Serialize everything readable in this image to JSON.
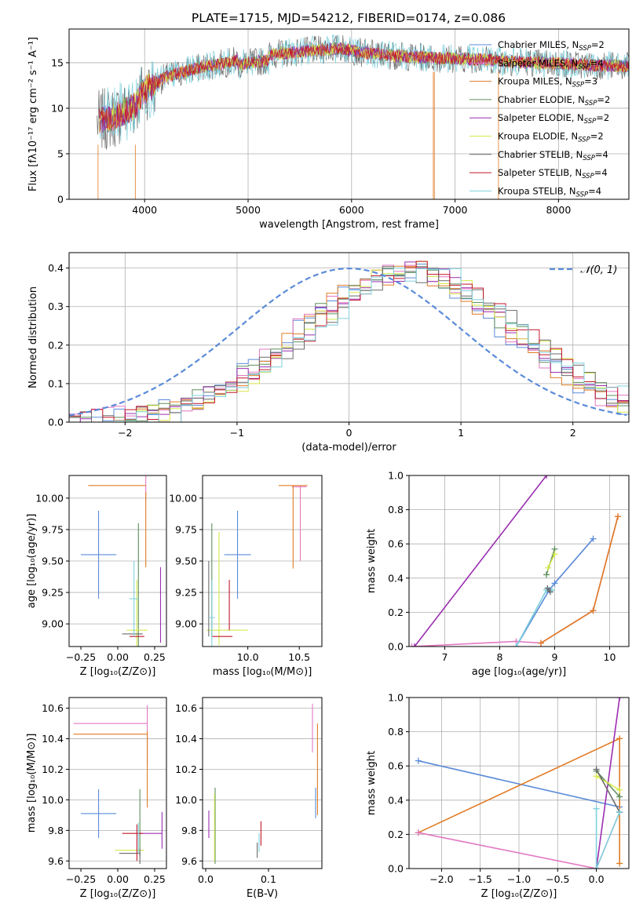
{
  "title": "PLATE=1715, MJD=54212, FIBERID=0174, z=0.086",
  "colors": {
    "Chabrier MILES": "#5b8bd9",
    "Salpeter MILES": "#e377c2",
    "Kroupa MILES": "#e07b24",
    "Chabrier ELODIE": "#5e8f5e",
    "Salpeter ELODIE": "#9a2fb0",
    "Kroupa ELODIE": "#d6e84a",
    "Chabrier STELIB": "#6b6b6b",
    "Salpeter STELIB": "#c4162a",
    "Kroupa STELIB": "#7fd1dd"
  },
  "chart_data": [
    {
      "id": "spectrum",
      "type": "line",
      "xlabel": "wavelength [Angstrom, rest frame]",
      "ylabel": "Flux [fλ10⁻¹⁷ erg cm⁻² s⁻¹ A⁻¹]",
      "xlim": [
        3270,
        8680
      ],
      "ylim": [
        0,
        18.7
      ],
      "xticks": [
        "4000",
        "5000",
        "6000",
        "7000",
        "8000"
      ],
      "yticks": [
        "0",
        "5",
        "10",
        "15"
      ],
      "grid": true,
      "legend_position": "upper-right",
      "legend": [
        {
          "label": "Chabrier MILES, N",
          "sub": "SSP",
          "suffix": "=2",
          "color": "#5b8bd9"
        },
        {
          "label": "Salpeter MILES, N",
          "sub": "SSP",
          "suffix": "=4",
          "color": "#e377c2"
        },
        {
          "label": "Kroupa MILES, N",
          "sub": "SSP",
          "suffix": "=3",
          "color": "#e07b24"
        },
        {
          "label": "Chabrier ELODIE, N",
          "sub": "SSP",
          "suffix": "=2",
          "color": "#5e8f5e"
        },
        {
          "label": "Salpeter ELODIE, N",
          "sub": "SSP",
          "suffix": "=2",
          "color": "#9a2fb0"
        },
        {
          "label": "Kroupa ELODIE, N",
          "sub": "SSP",
          "suffix": "=2",
          "color": "#d6e84a"
        },
        {
          "label": "Chabrier STELIB, N",
          "sub": "SSP",
          "suffix": "=4",
          "color": "#6b6b6b"
        },
        {
          "label": "Salpeter STELIB, N",
          "sub": "SSP",
          "suffix": "=4",
          "color": "#c4162a"
        },
        {
          "label": "Kroupa STELIB, N",
          "sub": "SSP",
          "suffix": "=4",
          "color": "#7fd1dd"
        }
      ],
      "continuum": {
        "x": [
          3540,
          3700,
          3900,
          4000,
          4200,
          4500,
          4800,
          5000,
          5300,
          5600,
          5900,
          6100,
          6500,
          6800,
          7200,
          7600,
          8000,
          8400,
          8680
        ],
        "y": [
          8.5,
          9.0,
          10.2,
          12.0,
          13.4,
          14.4,
          15.0,
          15.6,
          16.0,
          16.3,
          16.6,
          16.1,
          15.7,
          15.5,
          15.4,
          15.1,
          14.9,
          14.7,
          14.6
        ]
      }
    },
    {
      "id": "residuals",
      "type": "area",
      "xlabel": "(data-model)/error",
      "ylabel": "Normed distribution",
      "xlim": [
        -2.5,
        2.5
      ],
      "ylim": [
        0,
        0.44
      ],
      "xticks": [
        "−2",
        "−1",
        "0",
        "1",
        "2"
      ],
      "yticks": [
        "0.0",
        "0.1",
        "0.2",
        "0.3",
        "0.4"
      ],
      "grid": true,
      "legend_position": "upper-right",
      "reference": {
        "label": "𝒩(0, 1)",
        "mean": 0,
        "sigma": 1,
        "color": "#5b8bd9"
      },
      "bin_width": 0.1,
      "histogram_shape": {
        "mean": 0.55,
        "sigma": 0.95,
        "peak": 0.39
      }
    },
    {
      "id": "age-vs-Z",
      "type": "scatter",
      "xlabel": "Z [log₁₀(Z/Z⊙)]",
      "ylabel": "age  [log₁₀(age/yr)]",
      "xlim": [
        -0.33,
        0.33
      ],
      "ylim": [
        8.82,
        10.18
      ],
      "xticks": [
        "−0.25",
        "0.00",
        "0.25"
      ],
      "yticks": [
        "9.00",
        "9.25",
        "9.50",
        "9.75",
        "10.00"
      ],
      "points": [
        {
          "x": -0.13,
          "y": 9.55,
          "xerr": 0.12,
          "yerr": 0.35,
          "color": "#5b8bd9"
        },
        {
          "x": 0.19,
          "y": 10.08,
          "xerr": 0.0,
          "yerr": 0.1,
          "color": "#e377c2"
        },
        {
          "x": -0.2,
          "y": 10.1,
          "xerr": 0.0,
          "yerr": 0.0,
          "color": "#e07b24"
        },
        {
          "x": 0.19,
          "y": 9.75,
          "xerr": 0.0,
          "yerr": 0.3,
          "color": "#e07b24"
        },
        {
          "x": 0.14,
          "y": 9.3,
          "xerr": 0.0,
          "yerr": 0.5,
          "color": "#5e8f5e"
        },
        {
          "x": 0.29,
          "y": 9.15,
          "xerr": 0.0,
          "yerr": 0.3,
          "color": "#9a2fb0"
        },
        {
          "x": 0.13,
          "y": 8.95,
          "xerr": 0.07,
          "yerr": 0.4,
          "color": "#d6e84a"
        },
        {
          "x": 0.1,
          "y": 8.92,
          "xerr": 0.07,
          "yerr": 0.0,
          "color": "#6b6b6b"
        },
        {
          "x": 0.13,
          "y": 8.9,
          "xerr": 0.05,
          "yerr": 0.0,
          "color": "#c4162a"
        },
        {
          "x": 0.11,
          "y": 9.2,
          "xerr": 0.03,
          "yerr": 0.3,
          "color": "#7fd1dd"
        }
      ]
    },
    {
      "id": "age-vs-mass",
      "type": "scatter",
      "xlabel": "mass [log₁₀(M/M⊙)]",
      "ylabel": "",
      "xlim": [
        9.56,
        10.72
      ],
      "ylim": [
        8.82,
        10.18
      ],
      "xticks": [
        "10.0",
        "10.5"
      ],
      "yticks": [
        "9.00",
        "9.25",
        "9.50",
        "9.75",
        "10.00"
      ],
      "points": [
        {
          "x": 9.9,
          "y": 9.55,
          "xerr": 0.13,
          "yerr": 0.35,
          "color": "#5b8bd9"
        },
        {
          "x": 10.5,
          "y": 10.09,
          "xerr": 0.07,
          "yerr": 0.0,
          "color": "#e377c2"
        },
        {
          "x": 10.51,
          "y": 9.8,
          "xerr": 0.0,
          "yerr": 0.3,
          "color": "#e377c2"
        },
        {
          "x": 10.44,
          "y": 10.1,
          "xerr": 0.14,
          "yerr": 0.0,
          "color": "#e07b24"
        },
        {
          "x": 10.44,
          "y": 9.77,
          "xerr": 0.0,
          "yerr": 0.33,
          "color": "#e07b24"
        },
        {
          "x": 9.65,
          "y": 9.35,
          "xerr": 0.0,
          "yerr": 0.45,
          "color": "#5e8f5e"
        },
        {
          "x": 9.72,
          "y": 9.28,
          "xerr": 0.0,
          "yerr": 0.45,
          "color": "#d6e84a"
        },
        {
          "x": 9.8,
          "y": 8.95,
          "xerr": 0.2,
          "yerr": 0.0,
          "color": "#d6e84a"
        },
        {
          "x": 9.62,
          "y": 9.2,
          "xerr": 0.0,
          "yerr": 0.3,
          "color": "#6b6b6b"
        },
        {
          "x": 9.75,
          "y": 8.9,
          "xerr": 0.1,
          "yerr": 0.0,
          "color": "#c4162a"
        },
        {
          "x": 9.82,
          "y": 9.15,
          "xerr": 0.0,
          "yerr": 0.2,
          "color": "#c4162a"
        },
        {
          "x": 9.65,
          "y": 9.05,
          "xerr": 0.03,
          "yerr": 0.3,
          "color": "#7fd1dd"
        }
      ]
    },
    {
      "id": "mass-weight-vs-age",
      "type": "line",
      "xlabel": "age  [log₁₀(age/yr)]",
      "ylabel": "mass weight",
      "xlim": [
        6.35,
        10.35
      ],
      "ylim": [
        0,
        1
      ],
      "xticks": [
        "7",
        "8",
        "9",
        "10"
      ],
      "yticks": [
        "0.0",
        "0.2",
        "0.4",
        "0.6",
        "0.8",
        "1.0"
      ],
      "grid": true,
      "series": [
        {
          "color": "#e377c2",
          "x": [
            6.4,
            8.3,
            8.75,
            9.7,
            10.15
          ],
          "y": [
            0.0,
            0.03,
            0.02,
            0.21,
            0.76
          ]
        },
        {
          "color": "#e07b24",
          "x": [
            8.75,
            9.7,
            10.15
          ],
          "y": [
            0.02,
            0.21,
            0.76
          ]
        },
        {
          "color": "#9a2fb0",
          "x": [
            6.45,
            8.85
          ],
          "y": [
            0.0,
            1.0
          ]
        },
        {
          "color": "#5b8bd9",
          "x": [
            8.3,
            8.9,
            9.0,
            9.7
          ],
          "y": [
            0.0,
            0.33,
            0.37,
            0.63
          ]
        },
        {
          "color": "#7fd1dd",
          "x": [
            8.3,
            8.85,
            8.95
          ],
          "y": [
            0.0,
            0.33,
            0.33
          ]
        },
        {
          "color": "#5e8f5e",
          "x": [
            8.85,
            9.0
          ],
          "y": [
            0.42,
            0.57
          ]
        },
        {
          "color": "#d6e84a",
          "x": [
            8.88,
            9.0
          ],
          "y": [
            0.46,
            0.54
          ]
        },
        {
          "color": "#6b6b6b",
          "x": [
            8.87,
            8.92
          ],
          "y": [
            0.34,
            0.32
          ]
        }
      ]
    },
    {
      "id": "mass-vs-Z",
      "type": "scatter",
      "xlabel": "Z [log₁₀(Z/Z⊙)]",
      "ylabel": "mass [log₁₀(M/M⊙)]",
      "xlim": [
        -0.33,
        0.33
      ],
      "ylim": [
        9.55,
        10.67
      ],
      "xticks": [
        "−0.25",
        "0.00",
        "0.25"
      ],
      "yticks": [
        "9.6",
        "9.8",
        "10.0",
        "10.2",
        "10.4",
        "10.6"
      ],
      "points": [
        {
          "x": -0.13,
          "y": 9.91,
          "xerr": 0.12,
          "yerr": 0.16,
          "color": "#5b8bd9"
        },
        {
          "x": -0.05,
          "y": 10.5,
          "xerr": 0.25,
          "yerr": 0.0,
          "color": "#e377c2"
        },
        {
          "x": 0.2,
          "y": 10.42,
          "xerr": 0.0,
          "yerr": 0.2,
          "color": "#e377c2"
        },
        {
          "x": -0.05,
          "y": 10.43,
          "xerr": 0.25,
          "yerr": 0.0,
          "color": "#e07b24"
        },
        {
          "x": 0.2,
          "y": 10.2,
          "xerr": 0.0,
          "yerr": 0.25,
          "color": "#e07b24"
        },
        {
          "x": 0.15,
          "y": 9.85,
          "xerr": 0.0,
          "yerr": 0.22,
          "color": "#5e8f5e"
        },
        {
          "x": 0.22,
          "y": 9.78,
          "xerr": 0.08,
          "yerr": 0.0,
          "color": "#9a2fb0"
        },
        {
          "x": 0.3,
          "y": 9.8,
          "xerr": 0.0,
          "yerr": 0.12,
          "color": "#9a2fb0"
        },
        {
          "x": 0.08,
          "y": 9.67,
          "xerr": 0.1,
          "yerr": 0.0,
          "color": "#d6e84a"
        },
        {
          "x": 0.15,
          "y": 9.63,
          "xerr": 0.0,
          "yerr": 0.05,
          "color": "#6b6b6b"
        },
        {
          "x": 0.08,
          "y": 9.65,
          "xerr": 0.07,
          "yerr": 0.0,
          "color": "#6b6b6b"
        },
        {
          "x": 0.1,
          "y": 9.78,
          "xerr": 0.07,
          "yerr": 0.0,
          "color": "#c4162a"
        },
        {
          "x": 0.13,
          "y": 9.72,
          "xerr": 0.0,
          "yerr": 0.12,
          "color": "#c4162a"
        },
        {
          "x": 0.14,
          "y": 9.75,
          "xerr": 0.0,
          "yerr": 0.1,
          "color": "#7fd1dd"
        }
      ]
    },
    {
      "id": "mass-vs-EBV",
      "type": "scatter",
      "xlabel": "E(B-V)",
      "ylabel": "",
      "xlim": [
        -0.005,
        0.185
      ],
      "ylim": [
        9.55,
        10.67
      ],
      "xticks": [
        "0.0",
        "0.1"
      ],
      "yticks": [
        "9.6",
        "9.8",
        "10.0",
        "10.2",
        "10.4",
        "10.6"
      ],
      "points": [
        {
          "x": 0.175,
          "y": 9.98,
          "xerr": 0.0,
          "yerr": 0.1,
          "color": "#5b8bd9"
        },
        {
          "x": 0.17,
          "y": 10.47,
          "xerr": 0.0,
          "yerr": 0.16,
          "color": "#e377c2"
        },
        {
          "x": 0.178,
          "y": 10.2,
          "xerr": 0.0,
          "yerr": 0.3,
          "color": "#e07b24"
        },
        {
          "x": 0.015,
          "y": 9.83,
          "xerr": 0.0,
          "yerr": 0.25,
          "color": "#5e8f5e"
        },
        {
          "x": 0.005,
          "y": 9.84,
          "xerr": 0.0,
          "yerr": 0.09,
          "color": "#9a2fb0"
        },
        {
          "x": 0.014,
          "y": 9.82,
          "xerr": 0.0,
          "yerr": 0.22,
          "color": "#d6e84a"
        },
        {
          "x": 0.088,
          "y": 9.78,
          "xerr": 0.0,
          "yerr": 0.08,
          "color": "#c4162a"
        },
        {
          "x": 0.082,
          "y": 9.67,
          "xerr": 0.0,
          "yerr": 0.05,
          "color": "#6b6b6b"
        },
        {
          "x": 0.085,
          "y": 9.72,
          "xerr": 0.0,
          "yerr": 0.06,
          "color": "#7fd1dd"
        }
      ]
    },
    {
      "id": "mass-weight-vs-Z",
      "type": "line",
      "xlabel": "Z [log₁₀(Z/Z⊙)]",
      "ylabel": "mass weight",
      "xlim": [
        -2.42,
        0.42
      ],
      "ylim": [
        0,
        1
      ],
      "xticks": [
        "−2.0",
        "−1.5",
        "−1.0",
        "−0.5",
        "0.0"
      ],
      "yticks": [
        "0.0",
        "0.2",
        "0.4",
        "0.6",
        "0.8",
        "1.0"
      ],
      "grid": true,
      "series": [
        {
          "color": "#5b8bd9",
          "x": [
            -2.3,
            0.3
          ],
          "y": [
            0.63,
            0.36
          ]
        },
        {
          "color": "#e07b24",
          "x": [
            -2.3,
            0.3,
            0.3,
            0.3
          ],
          "y": [
            0.21,
            0.76,
            0.33,
            0.03
          ]
        },
        {
          "color": "#e377c2",
          "x": [
            -2.3,
            0.0,
            0.3
          ],
          "y": [
            0.21,
            0.0,
            0.33
          ]
        },
        {
          "color": "#9a2fb0",
          "x": [
            0.0,
            0.3
          ],
          "y": [
            0.0,
            1.0
          ]
        },
        {
          "color": "#5e8f5e",
          "x": [
            0.0,
            0.3
          ],
          "y": [
            0.57,
            0.42
          ]
        },
        {
          "color": "#d6e84a",
          "x": [
            0.0,
            0.3
          ],
          "y": [
            0.54,
            0.46
          ]
        },
        {
          "color": "#6b6b6b",
          "x": [
            0.0,
            0.3
          ],
          "y": [
            0.58,
            0.33
          ]
        },
        {
          "color": "#7fd1dd",
          "x": [
            0.0,
            0.0,
            0.3
          ],
          "y": [
            0.35,
            0.0,
            0.33
          ]
        }
      ]
    }
  ]
}
